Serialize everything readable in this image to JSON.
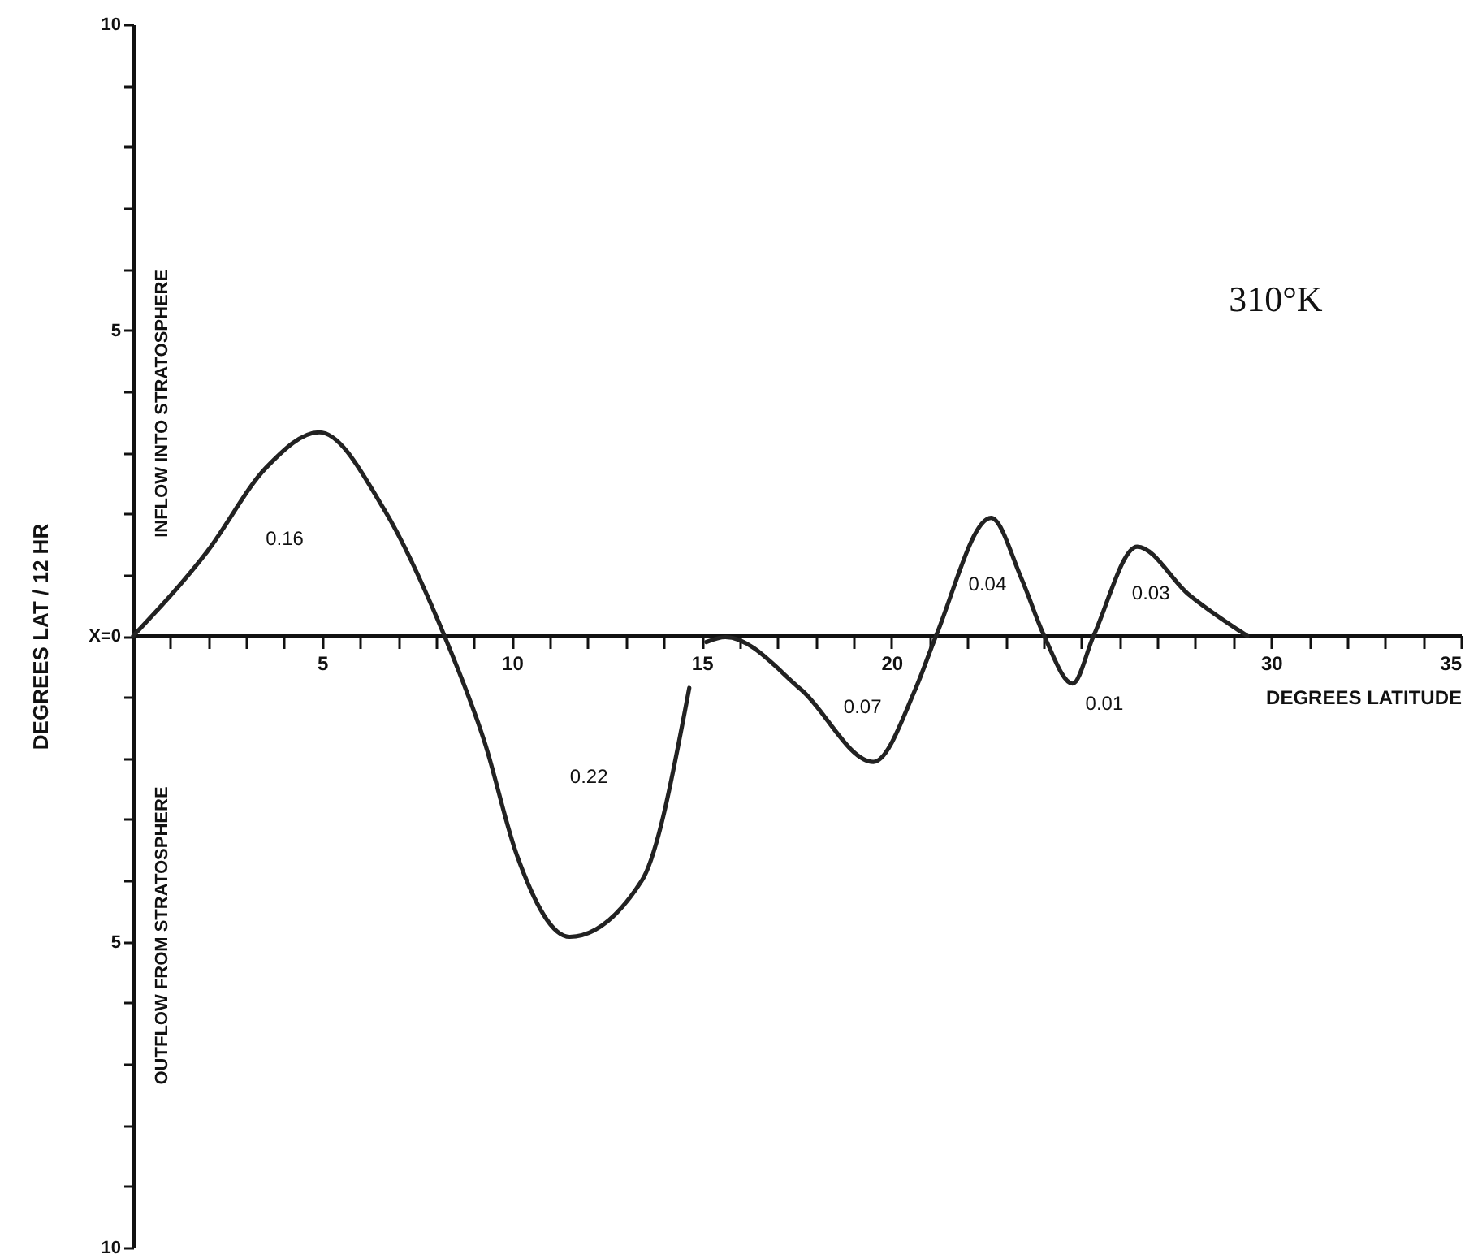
{
  "chart_data": {
    "type": "line",
    "xlabel": "DEGREES LATITUDE",
    "ylabel": "DEGREES LAT / 12 HR",
    "annotations": [
      "310°K",
      "INFLOW INTO STRATOSPHERE",
      "OUTFLOW FROM STRATOSPHERE",
      "0.16",
      "0.22",
      "0.07",
      "0.04",
      "0.01",
      "0.03"
    ],
    "series": [
      {
        "color": "#222222",
        "x": [
          0,
          1.95,
          3.5,
          4.9,
          6.6,
          8.2,
          9.26,
          10.1,
          11.5,
          13.4,
          14.65,
          14.9,
          15.1,
          15.6,
          17.6,
          19.5,
          20.6,
          21.15,
          22.6,
          23.4,
          24.0,
          24.75,
          25.3,
          26.45,
          27.8,
          29.35
        ],
        "values": [
          0,
          1.38,
          2.75,
          3.33,
          2.08,
          0,
          -1.74,
          -3.57,
          -4.92,
          -4.0,
          -0.85,
          null,
          -0.1,
          -0.02,
          -0.88,
          -2.06,
          -0.88,
          0,
          1.93,
          0.94,
          0,
          -0.78,
          0,
          1.46,
          0.68,
          0
        ]
      }
    ],
    "xlim": [
      0,
      35
    ],
    "ylim": [
      -10,
      10
    ],
    "xticks": [
      {
        "value": 1,
        "label": null
      },
      {
        "value": 2,
        "label": null
      },
      {
        "value": 3,
        "label": null
      },
      {
        "value": 4,
        "label": null
      },
      5,
      {
        "value": 6,
        "label": null
      },
      {
        "value": 7,
        "label": null
      },
      {
        "value": 8,
        "label": null
      },
      {
        "value": 9,
        "label": null
      },
      10,
      {
        "value": 11,
        "label": null
      },
      {
        "value": 12,
        "label": null
      },
      {
        "value": 13,
        "label": null
      },
      {
        "value": 14,
        "label": null
      },
      15,
      {
        "value": 16,
        "label": null
      },
      {
        "value": 17,
        "label": null
      },
      {
        "value": 18,
        "label": null
      },
      {
        "value": 19,
        "label": null
      },
      20,
      {
        "value": 21,
        "label": null
      },
      {
        "value": 22,
        "label": null
      },
      {
        "value": 23,
        "label": null
      },
      {
        "value": 24,
        "label": null
      },
      {
        "value": 25,
        "label": null
      },
      {
        "value": 26,
        "label": null
      },
      {
        "value": 27,
        "label": null
      },
      {
        "value": 28,
        "label": null
      },
      {
        "value": 29,
        "label": null
      },
      30,
      {
        "value": 31,
        "label": null
      },
      {
        "value": 32,
        "label": null
      },
      {
        "value": 33,
        "label": null
      },
      {
        "value": 34,
        "label": null
      },
      35
    ],
    "yticks": [
      {
        "value": -10,
        "label": "10"
      },
      {
        "value": -9,
        "label": null
      },
      {
        "value": -8,
        "label": null
      },
      {
        "value": -7,
        "label": null
      },
      {
        "value": -6,
        "label": null
      },
      {
        "value": -5,
        "label": "5"
      },
      {
        "value": -4,
        "label": null
      },
      {
        "value": -3,
        "label": null
      },
      {
        "value": -2,
        "label": null
      },
      {
        "value": -1,
        "label": null
      },
      {
        "value": 0,
        "label": "X=0"
      },
      {
        "value": 1,
        "label": null
      },
      {
        "value": 2,
        "label": null
      },
      {
        "value": 3,
        "label": null
      },
      {
        "value": 4,
        "label": null
      },
      5,
      {
        "value": 6,
        "label": null
      },
      {
        "value": 7,
        "label": null
      },
      {
        "value": 8,
        "label": null
      },
      {
        "value": 9,
        "label": null
      },
      10
    ],
    "grid": false,
    "line_style": "solid"
  }
}
